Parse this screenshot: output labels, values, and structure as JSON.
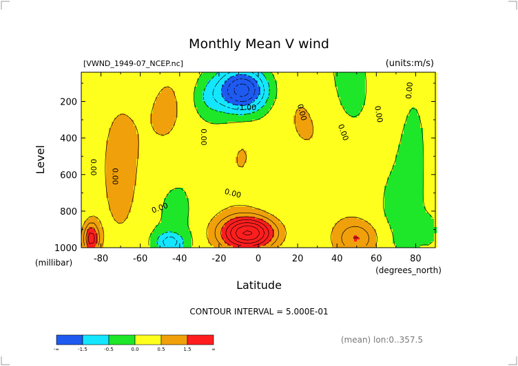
{
  "chart_data": {
    "type": "heatmap",
    "title": "Monthly Mean V wind",
    "file_label": "[VWND_1949-07_NCEP.nc]",
    "units_label": "(units:m/s)",
    "xlabel": "Latitude",
    "x_units_label": "(degrees_north)",
    "ylabel": "Level",
    "y_units_label": "(millibar)",
    "x_ticks": [
      "-80",
      "-60",
      "-40",
      "-20",
      "0",
      "20",
      "40",
      "60",
      "80"
    ],
    "y_ticks": [
      "200",
      "400",
      "600",
      "800",
      "1000"
    ],
    "xlim": [
      -90,
      90
    ],
    "ylim": [
      1000,
      10
    ],
    "contour_interval_text": "CONTOUR INTERVAL = 5.000E-01",
    "footnote": "(mean) lon:0..357.5",
    "contour_labels": [
      "0.00",
      "0.00",
      "0.00",
      "0.00",
      "0.00",
      "0.00",
      "0.00",
      "0.00",
      "0.00",
      "-1.00"
    ],
    "colorbar": {
      "labels": [
        "-∞",
        "-1.5",
        "-0.5",
        "0.0",
        "0.5",
        "1.5",
        "∞"
      ],
      "colors": [
        "#1e5af0",
        "#14e6ff",
        "#1ee628",
        "#ffff1e",
        "#f0a00a",
        "#ff1e1e"
      ]
    },
    "levels": [
      -1.5,
      -0.5,
      0.0,
      0.5,
      1.5
    ],
    "features": [
      {
        "lat": -8,
        "lev": 140,
        "sx": 12,
        "sy": 110,
        "amp": -2.8
      },
      {
        "lat": -25,
        "lev": 180,
        "sx": 8,
        "sy": 100,
        "amp": -0.55
      },
      {
        "lat": -8,
        "lev": 480,
        "sx": 10,
        "sy": 200,
        "amp": 0.35
      },
      {
        "lat": -70,
        "lev": 450,
        "sx": 11,
        "sy": 420,
        "amp": 0.55
      },
      {
        "lat": -48,
        "lev": 300,
        "sx": 12,
        "sy": 250,
        "amp": 0.4
      },
      {
        "lat": 25,
        "lev": 380,
        "sx": 16,
        "sy": 320,
        "amp": 0.4
      },
      {
        "lat": 48,
        "lev": 130,
        "sx": 7,
        "sy": 160,
        "amp": -0.25
      },
      {
        "lat": 78,
        "lev": 500,
        "sx": 6,
        "sy": 400,
        "amp": -0.3
      },
      {
        "lat": -5,
        "lev": 920,
        "sx": 14,
        "sy": 90,
        "amp": 3.4
      },
      {
        "lat": -45,
        "lev": 970,
        "sx": 7,
        "sy": 55,
        "amp": -1.3
      },
      {
        "lat": -85,
        "lev": 950,
        "sx": 4,
        "sy": 90,
        "amp": 2.2
      },
      {
        "lat": 50,
        "lev": 950,
        "sx": 10,
        "sy": 90,
        "amp": 1.3
      },
      {
        "lat": 88,
        "lev": 900,
        "sx": 5,
        "sy": 120,
        "amp": -0.25
      },
      {
        "lat": 30,
        "lev": 620,
        "sx": 10,
        "sy": 140,
        "amp": -0.2
      }
    ],
    "base_value": 0.12,
    "grid": false
  }
}
